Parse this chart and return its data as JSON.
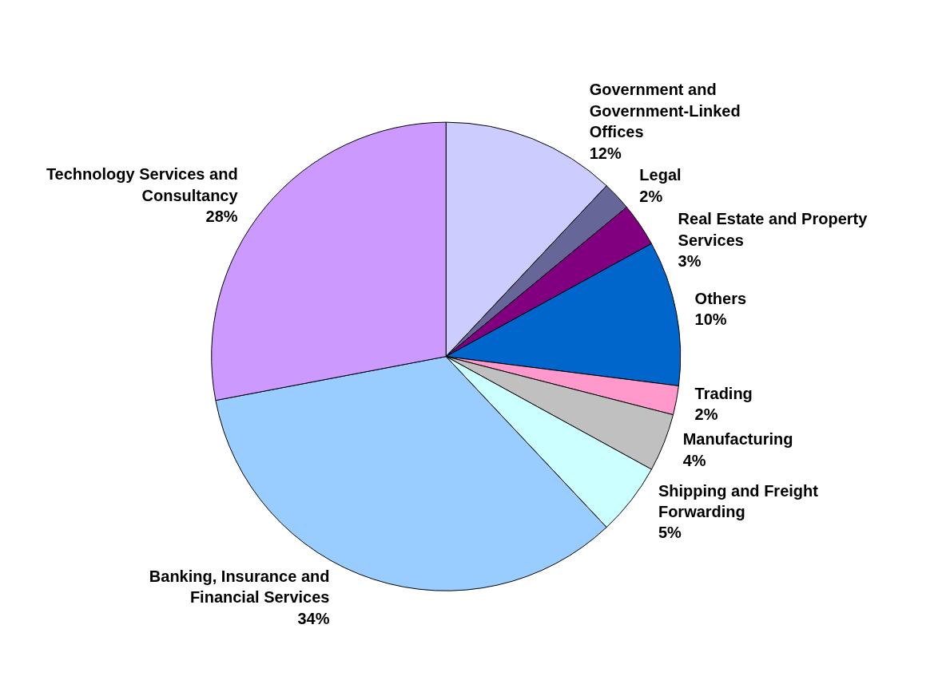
{
  "chart_data": {
    "type": "pie",
    "categories": [
      "Government and Government-Linked Offices",
      "Legal",
      "Real Estate and Property Services",
      "Others",
      "Trading",
      "Manufacturing",
      "Shipping and Freight Forwarding",
      "Banking, Insurance and Financial Services",
      "Technology Services and Consultancy"
    ],
    "values": [
      12,
      2,
      3,
      10,
      2,
      4,
      5,
      34,
      28
    ],
    "value_labels": [
      "12%",
      "2%",
      "3%",
      "10%",
      "2%",
      "4%",
      "5%",
      "34%",
      "28%"
    ],
    "colors": [
      "#ccccff",
      "#666699",
      "#800080",
      "#0066cc",
      "#ff99cc",
      "#c0c0c0",
      "#ccffff",
      "#99ccff",
      "#cc99ff"
    ]
  }
}
